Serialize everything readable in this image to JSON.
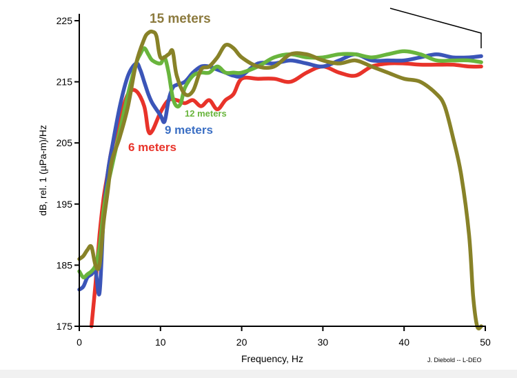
{
  "chart_data": {
    "type": "line",
    "xlabel": "Frequency, Hz",
    "ylabel": "dB, rel. 1 (µPa-m)/Hz",
    "xlim": [
      0,
      50
    ],
    "ylim": [
      175,
      225
    ],
    "xticks": [
      "0",
      "10",
      "20",
      "30",
      "40",
      "50"
    ],
    "yticks": [
      "175",
      "185",
      "195",
      "205",
      "215",
      "225"
    ],
    "grid": false,
    "legend": "inline labels",
    "credit": "J. Diebold -- L-DEO",
    "series": [
      {
        "name": "6 meters",
        "color": "#e8332a",
        "x": [
          1.5,
          2,
          2.5,
          3,
          3.5,
          4,
          5,
          6,
          7,
          8,
          8.5,
          9,
          10,
          11,
          12,
          13,
          14,
          15,
          16,
          17,
          18,
          19,
          20,
          22,
          24,
          26,
          28,
          30,
          32,
          34,
          36,
          38,
          40,
          42,
          44,
          46,
          48,
          49.5
        ],
        "y": [
          175,
          182,
          190,
          196,
          200,
          204,
          209,
          213,
          213.5,
          211,
          207,
          207,
          210,
          212,
          212,
          211.5,
          212,
          211,
          212,
          210.5,
          212,
          213,
          215.5,
          215.5,
          215.5,
          215,
          216.5,
          217.5,
          216.5,
          216,
          217.5,
          218,
          218,
          217.8,
          217.8,
          217.8,
          217.5,
          217.5
        ]
      },
      {
        "name": "9 meters",
        "color": "#3b55b8",
        "x": [
          0,
          0.5,
          1,
          1.5,
          2,
          2.5,
          3,
          3.5,
          4,
          5,
          6,
          7,
          7.5,
          8,
          8.5,
          9,
          10,
          10.5,
          11,
          11.5,
          12,
          13,
          14,
          15,
          16,
          17,
          18,
          19,
          20,
          22,
          24,
          26,
          28,
          30,
          32,
          34,
          36,
          38,
          40,
          42,
          44,
          46,
          48,
          49.5
        ],
        "y": [
          181,
          181.5,
          183,
          183.5,
          184,
          180.5,
          193,
          200,
          204,
          211,
          216,
          218,
          217,
          215,
          213,
          211.5,
          209.5,
          208.5,
          212,
          214,
          214.5,
          215,
          216.5,
          217.5,
          217.5,
          217,
          216.5,
          216,
          216,
          218,
          218,
          218.5,
          218,
          217.5,
          218.5,
          219.5,
          218.5,
          218.5,
          218.5,
          219,
          219.5,
          219,
          219,
          219.2
        ]
      },
      {
        "name": "12 meters",
        "color": "#69b53d",
        "x": [
          0,
          0.5,
          1,
          1.5,
          2,
          2.5,
          3,
          3.5,
          4,
          5,
          6,
          7,
          7.5,
          8,
          8.5,
          9,
          10,
          10.5,
          11,
          11.5,
          12,
          12.5,
          13,
          14,
          15,
          16,
          17,
          18,
          19,
          20,
          22,
          24,
          26,
          28,
          30,
          32,
          34,
          36,
          38,
          40,
          42,
          44,
          46,
          48,
          49.5
        ],
        "y": [
          184,
          183,
          183.5,
          184,
          185,
          188,
          194,
          198,
          201,
          207,
          213,
          218,
          219.5,
          220.5,
          219.5,
          218.5,
          218,
          219,
          216.5,
          212.5,
          211,
          211.5,
          214,
          216,
          216.5,
          216.5,
          217.5,
          216.5,
          216.5,
          216.5,
          217.5,
          219,
          219.5,
          219,
          219,
          219.5,
          219.5,
          219,
          219.5,
          220,
          219.5,
          218.5,
          218.5,
          218.5,
          218.2
        ]
      },
      {
        "name": "15 meters",
        "color": "#888228",
        "x": [
          0,
          0.5,
          1,
          1.5,
          2,
          2.5,
          3,
          3.5,
          4,
          5,
          6,
          7,
          8,
          8.5,
          9,
          9.5,
          10,
          11,
          11.5,
          12,
          13,
          14,
          15,
          16,
          17,
          18,
          19,
          20,
          22,
          24,
          26,
          28,
          30,
          32,
          34,
          36,
          38,
          40,
          42,
          44,
          45,
          46,
          47,
          48,
          48.5,
          49,
          49.5
        ],
        "y": [
          186,
          186.5,
          187.5,
          188,
          185,
          185,
          192,
          197,
          202,
          206,
          211,
          218,
          222,
          223,
          223.2,
          222.5,
          219,
          219.5,
          220,
          216,
          213,
          213.5,
          217,
          217.5,
          219,
          221,
          220.5,
          219,
          217.5,
          217.5,
          219.5,
          219.5,
          218.5,
          218,
          218.5,
          217.5,
          216.5,
          215.5,
          215,
          213,
          211,
          206,
          200,
          190,
          180,
          175,
          175
        ]
      }
    ]
  },
  "series_labels": [
    "15 meters",
    "12 meters",
    "9 meters",
    "6 meters"
  ]
}
